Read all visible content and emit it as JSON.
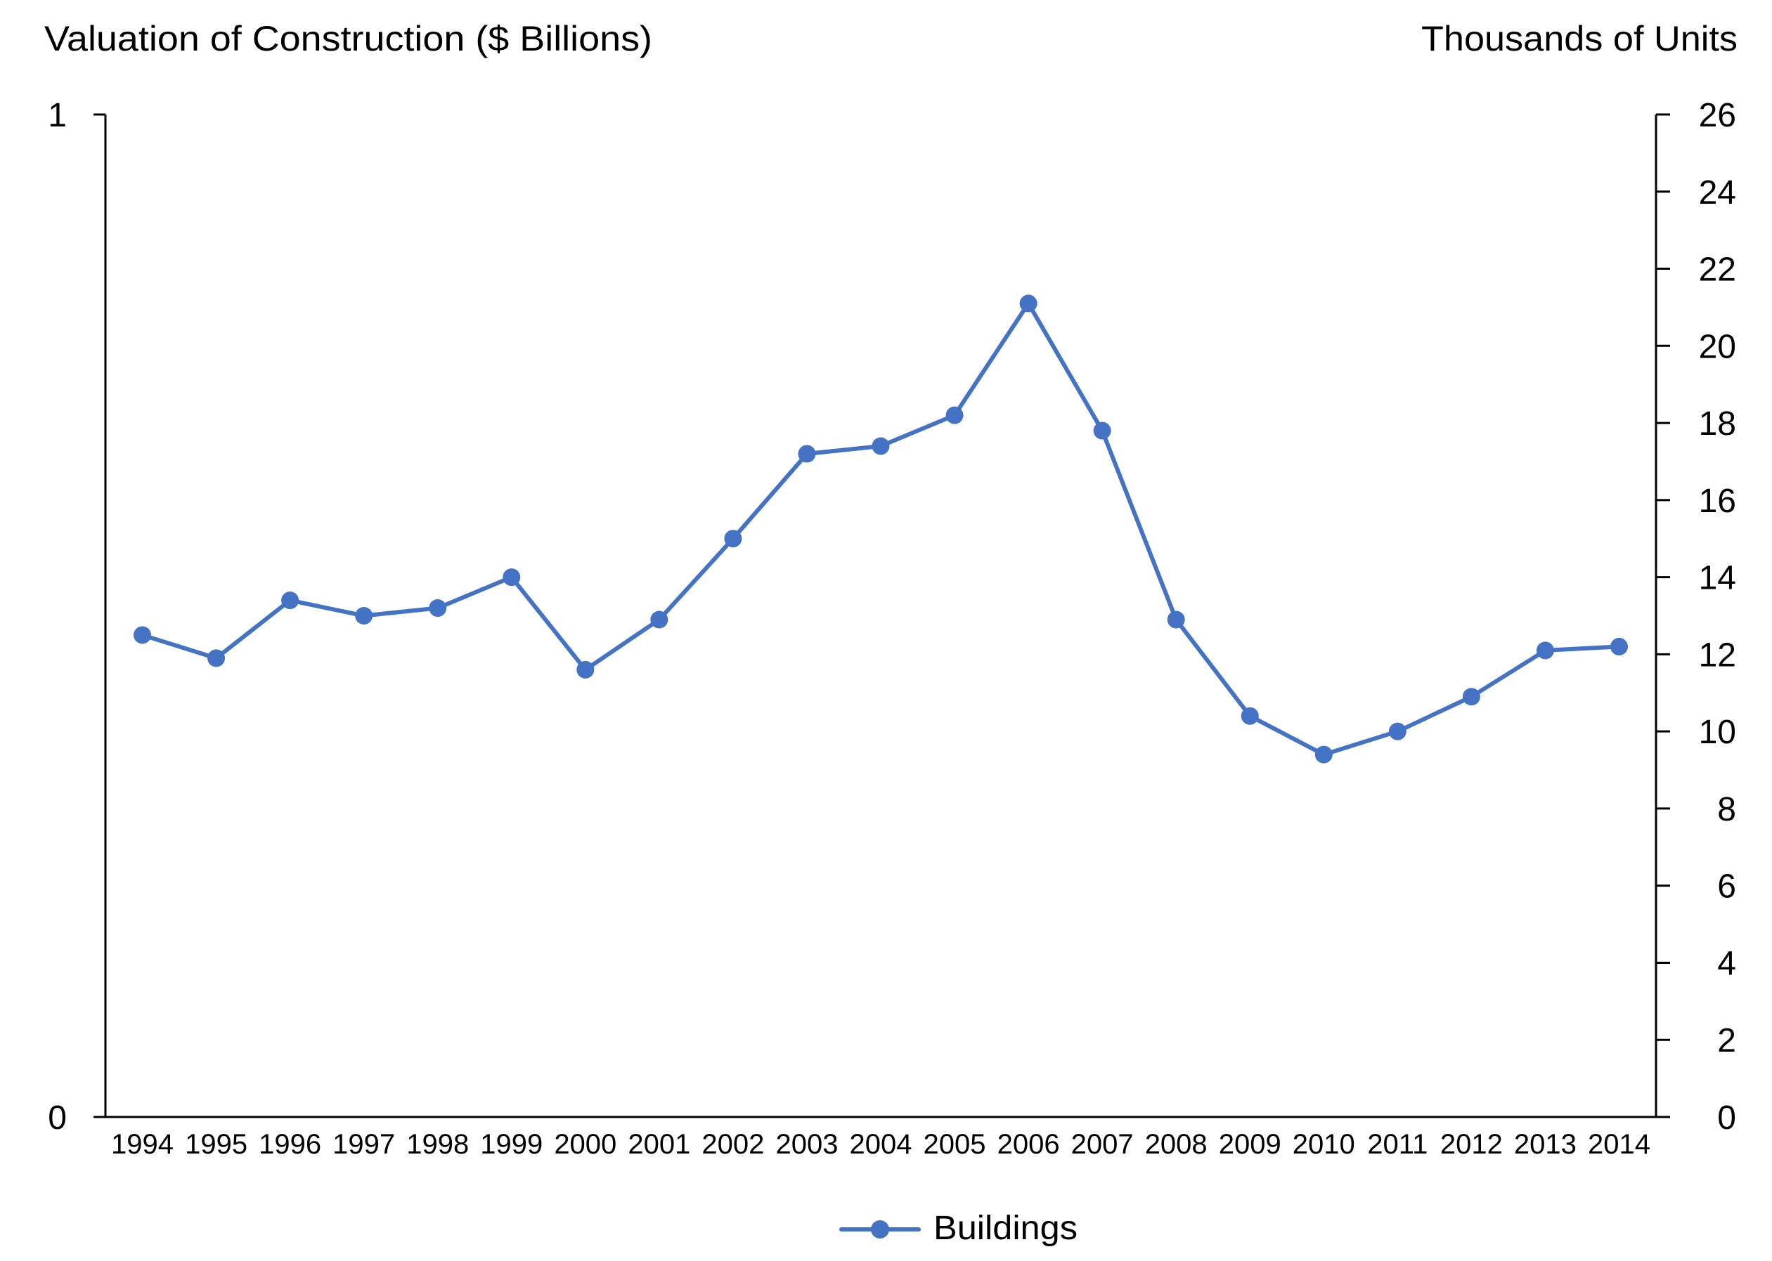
{
  "chart_data": {
    "type": "line",
    "title": "",
    "left_axis": {
      "label": "Valuation of Construction ($ Billions)",
      "range": [
        0,
        1
      ],
      "ticks": [
        0,
        1
      ]
    },
    "right_axis": {
      "label": "Thousands of Units",
      "range": [
        0,
        26
      ],
      "ticks": [
        0,
        2,
        4,
        6,
        8,
        10,
        12,
        14,
        16,
        18,
        20,
        22,
        24,
        26
      ]
    },
    "xlabel": "",
    "categories": [
      "1994",
      "1995",
      "1996",
      "1997",
      "1998",
      "1999",
      "2000",
      "2001",
      "2002",
      "2003",
      "2004",
      "2005",
      "2006",
      "2007",
      "2008",
      "2009",
      "2010",
      "2011",
      "2012",
      "2013",
      "2014"
    ],
    "series": [
      {
        "name": "Buildings",
        "axis": "right",
        "color": "#4472C4",
        "values": [
          12.5,
          11.9,
          13.4,
          13.0,
          13.2,
          14.0,
          11.6,
          12.9,
          15.0,
          17.2,
          17.4,
          18.2,
          21.1,
          17.8,
          12.9,
          10.4,
          9.4,
          10.0,
          10.9,
          12.1,
          12.2
        ]
      }
    ],
    "grid": false,
    "legend": {
      "position": "bottom-center",
      "entries": [
        "Buildings"
      ]
    }
  }
}
